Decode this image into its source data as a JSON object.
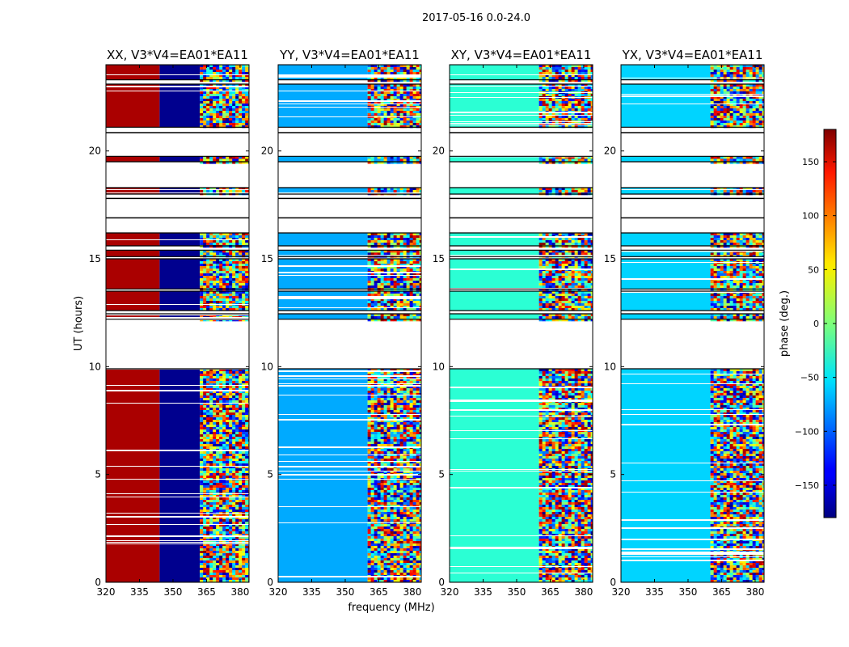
{
  "figure": {
    "suptitle": "2017-05-16 0.0-24.0",
    "colorbar": {
      "label": "phase (deg.)",
      "ticks": [
        150,
        100,
        50,
        0,
        -50,
        -100,
        -150
      ],
      "range": [
        -180,
        180
      ]
    }
  },
  "chart_data": [
    {
      "type": "heatmap",
      "title": "XX, V3*V4=EA01*EA11",
      "xlabel": "",
      "ylabel": "UT (hours)",
      "xlim": [
        320,
        384
      ],
      "ylim": [
        0,
        24
      ],
      "xticks": [
        320,
        335,
        350,
        365,
        380
      ],
      "yticks": [
        0,
        5,
        10,
        15,
        20
      ],
      "bands": [
        {
          "from": 320,
          "to": 344,
          "phase": 165
        },
        {
          "from": 344,
          "to": 362,
          "phase": -175
        },
        {
          "from": 362,
          "to": 384,
          "phase": "mixed"
        }
      ]
    },
    {
      "type": "heatmap",
      "title": "YY, V3*V4=EA01*EA11",
      "xlabel": "frequency (MHz)",
      "ylabel": "",
      "xlim": [
        320,
        384
      ],
      "ylim": [
        0,
        24
      ],
      "xticks": [
        320,
        335,
        350,
        365,
        380
      ],
      "yticks": [
        0,
        5,
        10,
        15,
        20
      ],
      "bands": [
        {
          "from": 320,
          "to": 360,
          "phase": -75
        },
        {
          "from": 360,
          "to": 384,
          "phase": "mixed"
        }
      ]
    },
    {
      "type": "heatmap",
      "title": "XY, V3*V4=EA01*EA11",
      "xlabel": "",
      "ylabel": "",
      "xlim": [
        320,
        384
      ],
      "ylim": [
        0,
        24
      ],
      "xticks": [
        320,
        335,
        350,
        365,
        380
      ],
      "yticks": [
        0,
        5,
        10,
        15,
        20
      ],
      "bands": [
        {
          "from": 320,
          "to": 360,
          "phase": -30
        },
        {
          "from": 360,
          "to": 384,
          "phase": "mixed"
        }
      ]
    },
    {
      "type": "heatmap",
      "title": "YX, V3*V4=EA01*EA11",
      "xlabel": "",
      "ylabel": "",
      "xlim": [
        320,
        384
      ],
      "ylim": [
        0,
        24
      ],
      "xticks": [
        320,
        335,
        350,
        365,
        380
      ],
      "yticks": [
        0,
        5,
        10,
        15,
        20
      ],
      "bands": [
        {
          "from": 320,
          "to": 360,
          "phase": -60
        },
        {
          "from": 360,
          "to": 384,
          "phase": "mixed"
        }
      ]
    }
  ],
  "data_segments_hours": [
    [
      0.0,
      9.9
    ],
    [
      12.2,
      12.45
    ],
    [
      12.6,
      13.5
    ],
    [
      13.6,
      15.0
    ],
    [
      15.1,
      15.4
    ],
    [
      15.6,
      16.2
    ],
    [
      18.0,
      18.3
    ],
    [
      19.5,
      19.75
    ],
    [
      21.1,
      23.1
    ],
    [
      23.3,
      24.0
    ]
  ],
  "gap_lines_hours": [
    16.9,
    17.8,
    20.85
  ]
}
